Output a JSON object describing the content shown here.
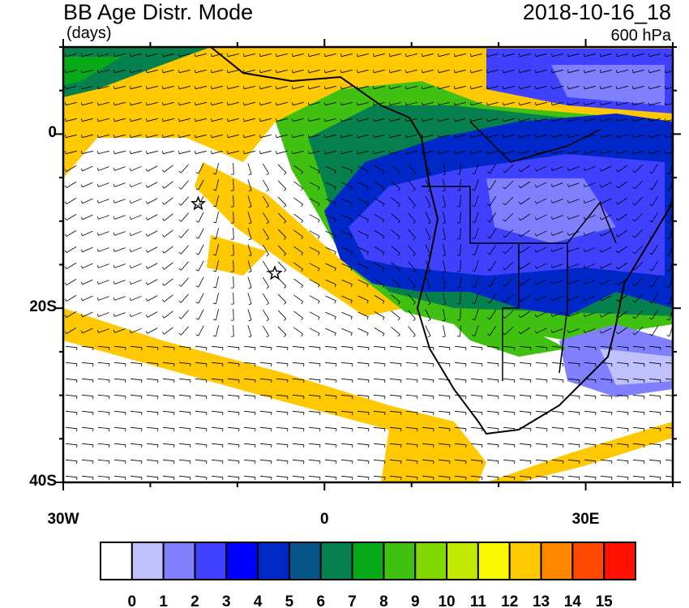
{
  "header": {
    "title": "BB Age Distr. Mode",
    "units": "(days)",
    "datetime": "2018-10-16_18",
    "level": "600 hPa"
  },
  "map": {
    "lon_range": [
      -30,
      40
    ],
    "lat_range": [
      -40,
      10
    ],
    "lon_labels": [
      {
        "lon": -30,
        "text": "30W"
      },
      {
        "lon": 0,
        "text": "0"
      },
      {
        "lon": 30,
        "text": "30E"
      }
    ],
    "lat_labels": [
      {
        "lat": 0,
        "text": "0"
      },
      {
        "lat": -20,
        "text": "20S"
      },
      {
        "lat": -40,
        "text": "40S"
      }
    ],
    "markers": [
      {
        "type": "star",
        "lon": -14.5,
        "lat": -8
      },
      {
        "type": "star",
        "lon": -5.7,
        "lat": -16
      }
    ],
    "overlay": "wind barbs"
  },
  "colorbar": {
    "labels": [
      "0",
      "1",
      "2",
      "3",
      "4",
      "5",
      "6",
      "7",
      "8",
      "9",
      "10",
      "11",
      "12",
      "13",
      "14",
      "15"
    ],
    "colors": [
      "#ffffff",
      "#c0c0ff",
      "#8080ff",
      "#4040ff",
      "#0000ff",
      "#0028c8",
      "#06558a",
      "#078050",
      "#06aa18",
      "#40c010",
      "#80d800",
      "#c0e800",
      "#f8f800",
      "#ffc800",
      "#ff8800",
      "#ff4800",
      "#ff1000"
    ]
  }
}
